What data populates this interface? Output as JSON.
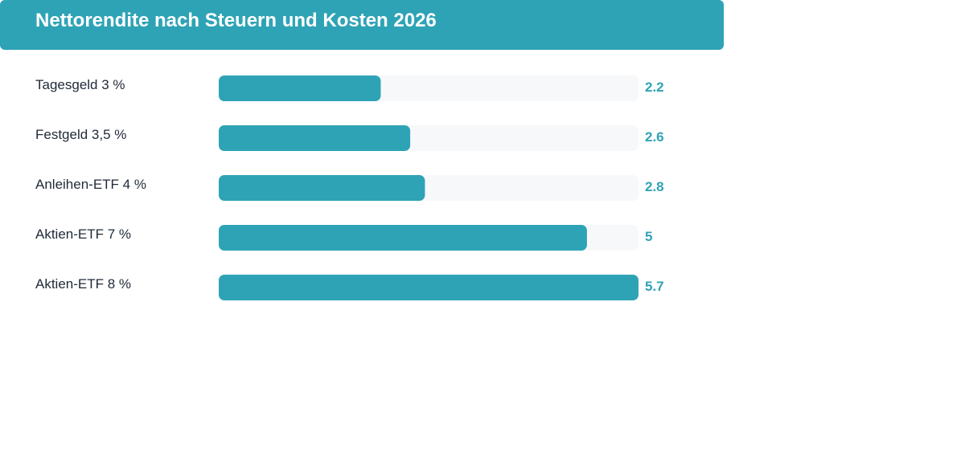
{
  "header": {
    "title": "Nettorendite nach Steuern und Kosten 2026"
  },
  "colors": {
    "accent": "#2ea3b6",
    "track": "#f7f8fa",
    "label_text": "#1f2937",
    "title_text": "#ffffff"
  },
  "chart_data": {
    "type": "bar",
    "orientation": "horizontal",
    "title": "Nettorendite nach Steuern und Kosten 2026",
    "categories": [
      "Tagesgeld 3 %",
      "Festgeld 3,5 %",
      "Anleihen-ETF 4 %",
      "Aktien-ETF 7 %",
      "Aktien-ETF 8 %"
    ],
    "values": [
      2.2,
      2.6,
      2.8,
      5,
      5.7
    ],
    "value_labels": [
      "2.2",
      "2.6",
      "2.8",
      "5",
      "5.7"
    ],
    "xlim": [
      0,
      5.7
    ],
    "xlabel": "",
    "ylabel": "",
    "grid": false,
    "legend": "none"
  }
}
